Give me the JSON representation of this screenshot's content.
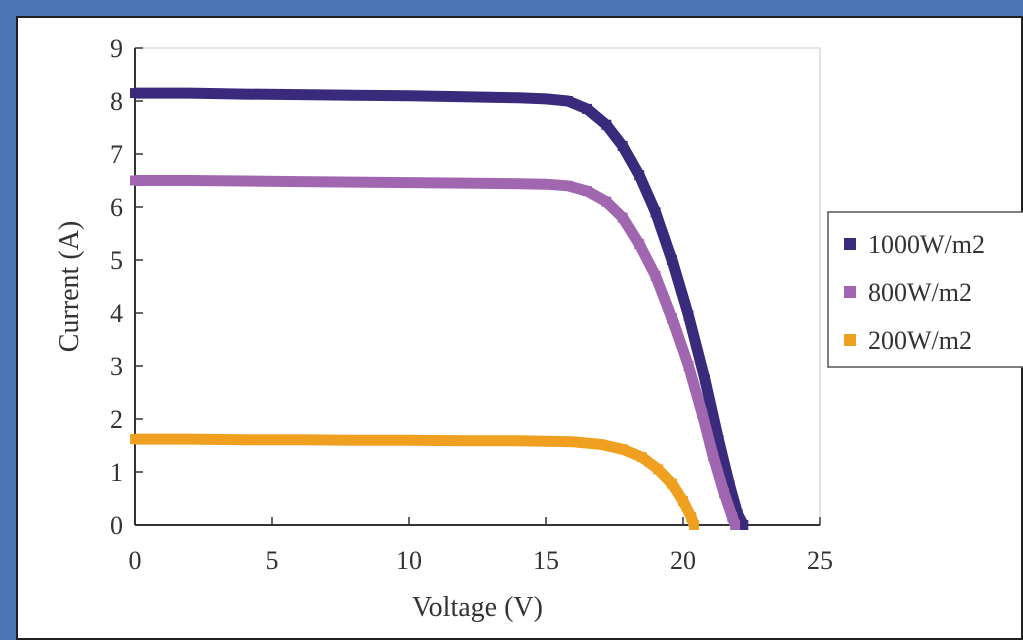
{
  "chart_data": {
    "type": "scatter",
    "title": "",
    "xlabel": "Voltage (V)",
    "ylabel": "Current (A)",
    "xlim": [
      0,
      25
    ],
    "ylim": [
      0,
      9
    ],
    "xticks": [
      0,
      5,
      10,
      15,
      20,
      25
    ],
    "yticks": [
      0,
      1,
      2,
      3,
      4,
      5,
      6,
      7,
      8,
      9
    ],
    "grid": false,
    "legend_position": "right",
    "series": [
      {
        "name": "1000W/m2",
        "color": "#3a2a7c",
        "x": [
          0,
          2,
          4,
          6,
          8,
          10,
          12,
          14,
          15,
          15.8,
          16.5,
          17.2,
          17.8,
          18.4,
          19.0,
          19.6,
          20.2,
          20.8,
          21.3,
          21.7,
          22.0,
          22.2
        ],
        "values": [
          8.15,
          8.15,
          8.13,
          8.12,
          8.11,
          8.1,
          8.08,
          8.06,
          8.04,
          8.0,
          7.85,
          7.55,
          7.15,
          6.6,
          5.9,
          5.0,
          3.95,
          2.75,
          1.6,
          0.75,
          0.2,
          0.0
        ]
      },
      {
        "name": "800W/m2",
        "color": "#a066b0",
        "x": [
          0,
          2,
          4,
          6,
          8,
          10,
          12,
          14,
          15,
          15.8,
          16.5,
          17.2,
          17.8,
          18.4,
          19.0,
          19.6,
          20.2,
          20.7,
          21.1,
          21.5,
          21.8,
          21.9
        ],
        "values": [
          6.5,
          6.5,
          6.49,
          6.48,
          6.47,
          6.46,
          6.45,
          6.44,
          6.43,
          6.4,
          6.3,
          6.1,
          5.8,
          5.3,
          4.7,
          3.9,
          3.0,
          2.1,
          1.3,
          0.6,
          0.15,
          0.0
        ]
      },
      {
        "name": "200W/m2",
        "color": "#f0a020",
        "x": [
          0,
          2,
          4,
          6,
          8,
          10,
          12,
          14,
          15,
          16,
          17,
          17.8,
          18.5,
          19.1,
          19.6,
          20.0,
          20.3,
          20.4
        ],
        "values": [
          1.62,
          1.62,
          1.61,
          1.61,
          1.6,
          1.6,
          1.59,
          1.59,
          1.58,
          1.57,
          1.52,
          1.43,
          1.28,
          1.05,
          0.78,
          0.45,
          0.15,
          0.0
        ]
      }
    ]
  }
}
